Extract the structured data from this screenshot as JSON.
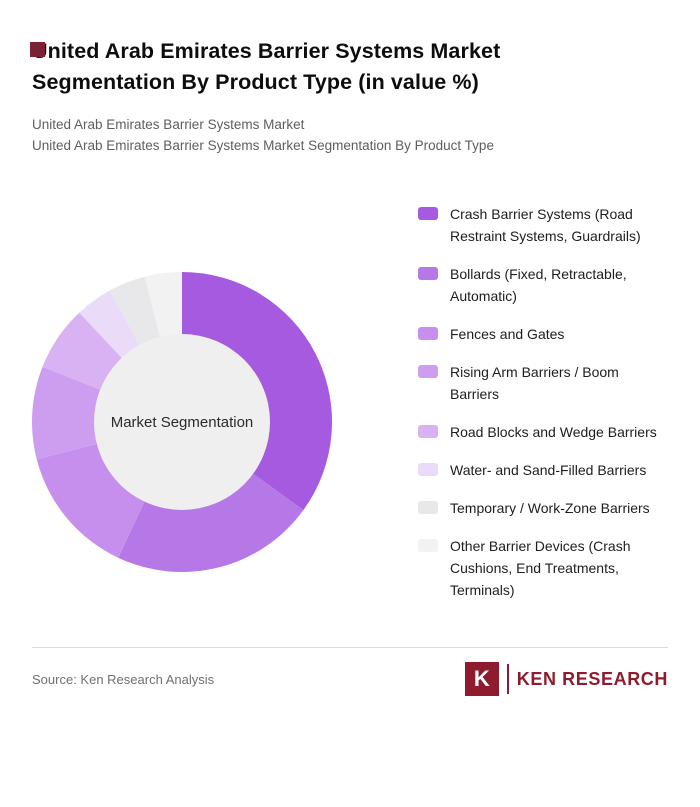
{
  "page": {
    "background": "#ffffff",
    "corner_square_color": "#7a2233"
  },
  "header": {
    "title": "United Arab Emirates Barrier Systems Market Segmentation By Product Type (in value %)",
    "subtitle_line1": "United Arab Emirates Barrier Systems Market",
    "subtitle_line2": "United Arab Emirates Barrier Systems Market Segmentation By Product Type"
  },
  "chart_data": {
    "type": "pie",
    "donut": true,
    "title": "United Arab Emirates Barrier Systems Market Segmentation By Product Type (in value %)",
    "units": "value %",
    "center_label": "Market Segmentation",
    "center_color": "#efefef",
    "legend_position": "right",
    "start_angle_deg": 0,
    "direction": "clockwise",
    "segments": [
      {
        "label": "Crash Barrier Systems (Road Restraint Systems, Guardrails)",
        "value": 35,
        "color": "#a55ae0"
      },
      {
        "label": "Bollards (Fixed, Retractable, Automatic)",
        "value": 22,
        "color": "#b678e7"
      },
      {
        "label": "Fences and Gates",
        "value": 14,
        "color": "#c68fed"
      },
      {
        "label": "Rising Arm Barriers / Boom Barriers",
        "value": 10,
        "color": "#cd9df0"
      },
      {
        "label": "Road Blocks and Wedge Barriers",
        "value": 7,
        "color": "#d9b2f4"
      },
      {
        "label": "Water- and Sand-Filled Barriers",
        "value": 4,
        "color": "#eadcf9"
      },
      {
        "label": "Temporary / Work-Zone Barriers",
        "value": 4,
        "color": "#e8e7ea"
      },
      {
        "label": "Other Barrier Devices (Crash Cushions, End Treatments, Terminals)",
        "value": 4,
        "color": "#f2f2f3"
      }
    ]
  },
  "footer": {
    "source": "Source: Ken Research Analysis",
    "logo_mark": "K",
    "logo_text": "KEN RESEARCH",
    "logo_color": "#8e1c2e"
  }
}
